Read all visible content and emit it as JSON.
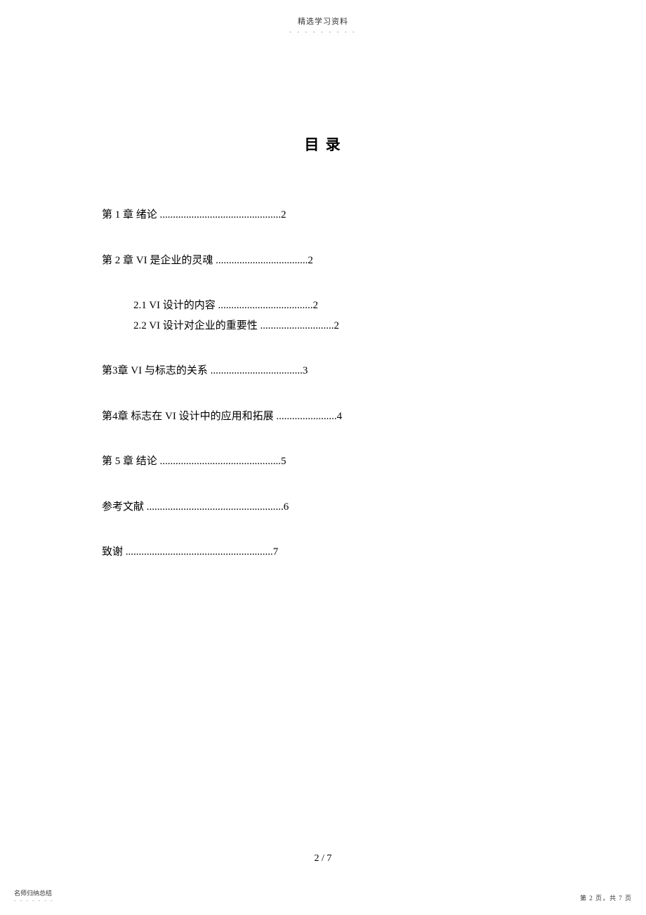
{
  "header": {
    "text": "精选学习资料",
    "dots": "- - - - - - - - -"
  },
  "title": "目 录",
  "toc": {
    "entries": [
      {
        "level": 1,
        "text": "第  1  章        绪论  ..............................................2",
        "firstSub": false,
        "first": true
      },
      {
        "level": 1,
        "text": "第  2  章    VI      是企业的灵魂    ...................................2",
        "firstSub": false,
        "first": false
      },
      {
        "level": 2,
        "text": "2.1    VI       设计的内容     ....................................2",
        "firstSub": true,
        "first": false
      },
      {
        "level": 2,
        "text": "2.2    VI       设计对企业的重要性      ............................2",
        "firstSub": false,
        "first": false
      },
      {
        "level": 1,
        "text": "第3章     VI     与标志的关系     ...................................3",
        "firstSub": false,
        "first": false
      },
      {
        "level": 1,
        "text": "第4章       标志在    VI   设计中的应用和拓展       .......................4",
        "firstSub": false,
        "first": false
      },
      {
        "level": 1,
        "text": "第  5  章        结论  ..............................................5",
        "firstSub": false,
        "first": false
      },
      {
        "level": 1,
        "text": "参考文献    ....................................................6",
        "firstSub": false,
        "first": false
      },
      {
        "level": 1,
        "text": "致谢   ........................................................7",
        "firstSub": false,
        "first": false
      }
    ]
  },
  "pageNumber": "2 / 7",
  "footer": {
    "left": "名师归纳总结",
    "leftDots": "- - - - - - -",
    "right": "第 2 页，共 7 页"
  },
  "colors": {
    "background": "#ffffff",
    "text": "#000000",
    "headerText": "#333333",
    "dots": "#999999"
  }
}
